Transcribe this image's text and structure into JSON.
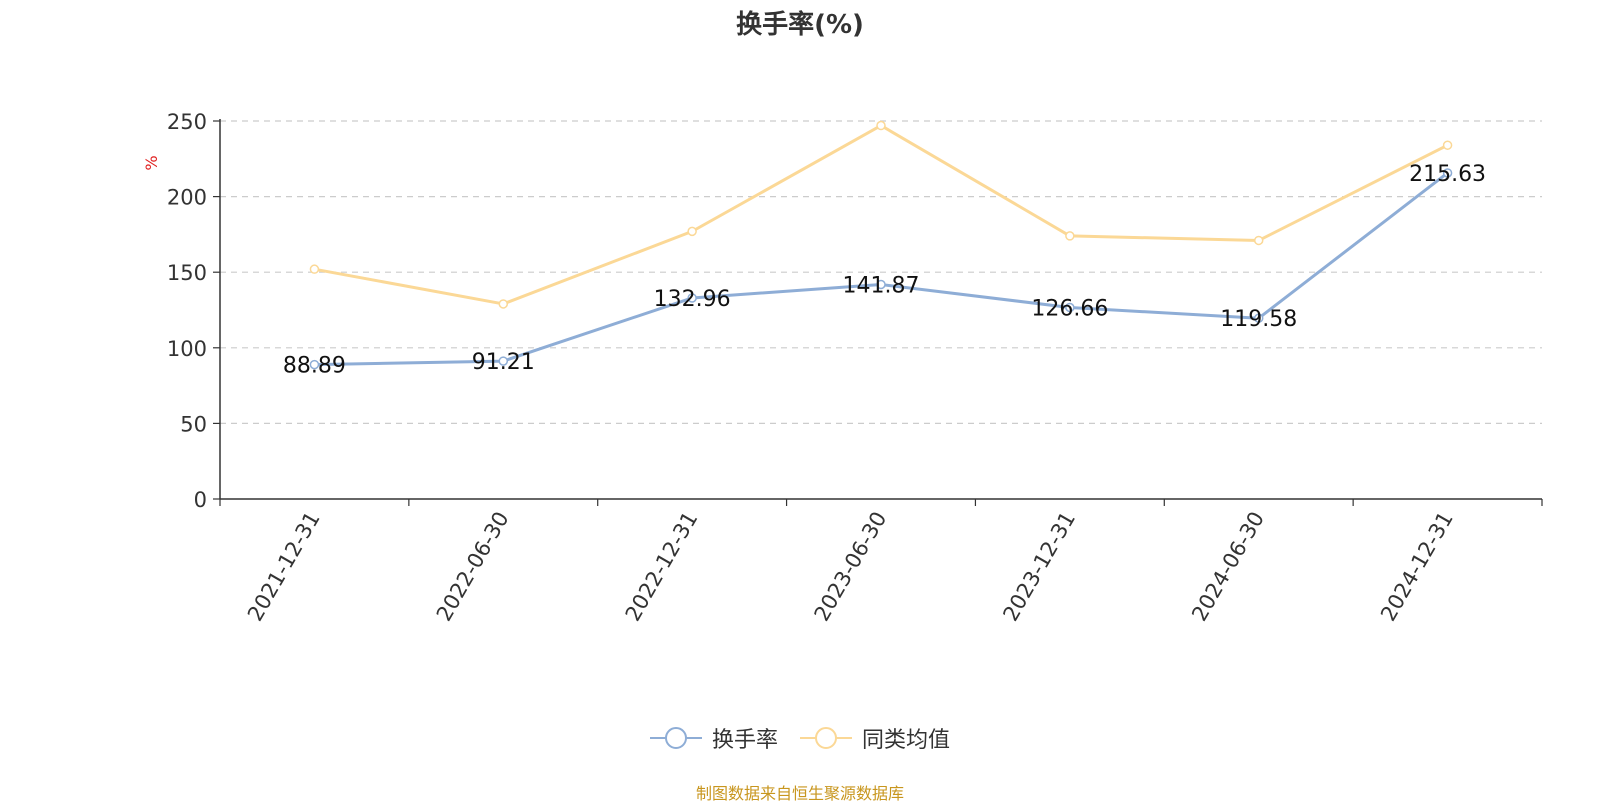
{
  "chart_data": {
    "type": "line",
    "title": "换手率(%)",
    "ylabel": "%",
    "xlabel": "",
    "ylim": [
      0,
      250
    ],
    "yticks": [
      0,
      50,
      100,
      150,
      200,
      250
    ],
    "grid": true,
    "legend_position": "bottom",
    "categories": [
      "2021-12-31",
      "2022-06-30",
      "2022-12-31",
      "2023-06-30",
      "2023-12-31",
      "2024-06-30",
      "2024-12-31"
    ],
    "series": [
      {
        "name": "换手率",
        "color": "#8eadd6",
        "values": [
          88.89,
          91.21,
          132.96,
          141.87,
          126.66,
          119.58,
          215.63
        ],
        "labels": [
          "88.89",
          "91.21",
          "132.96",
          "141.87",
          "126.66",
          "119.58",
          "215.63"
        ]
      },
      {
        "name": "同类均值",
        "color": "#fbd896",
        "values": [
          152,
          129,
          177,
          247,
          174,
          171,
          234
        ]
      }
    ]
  },
  "source_text": "制图数据来自恒生聚源数据库"
}
